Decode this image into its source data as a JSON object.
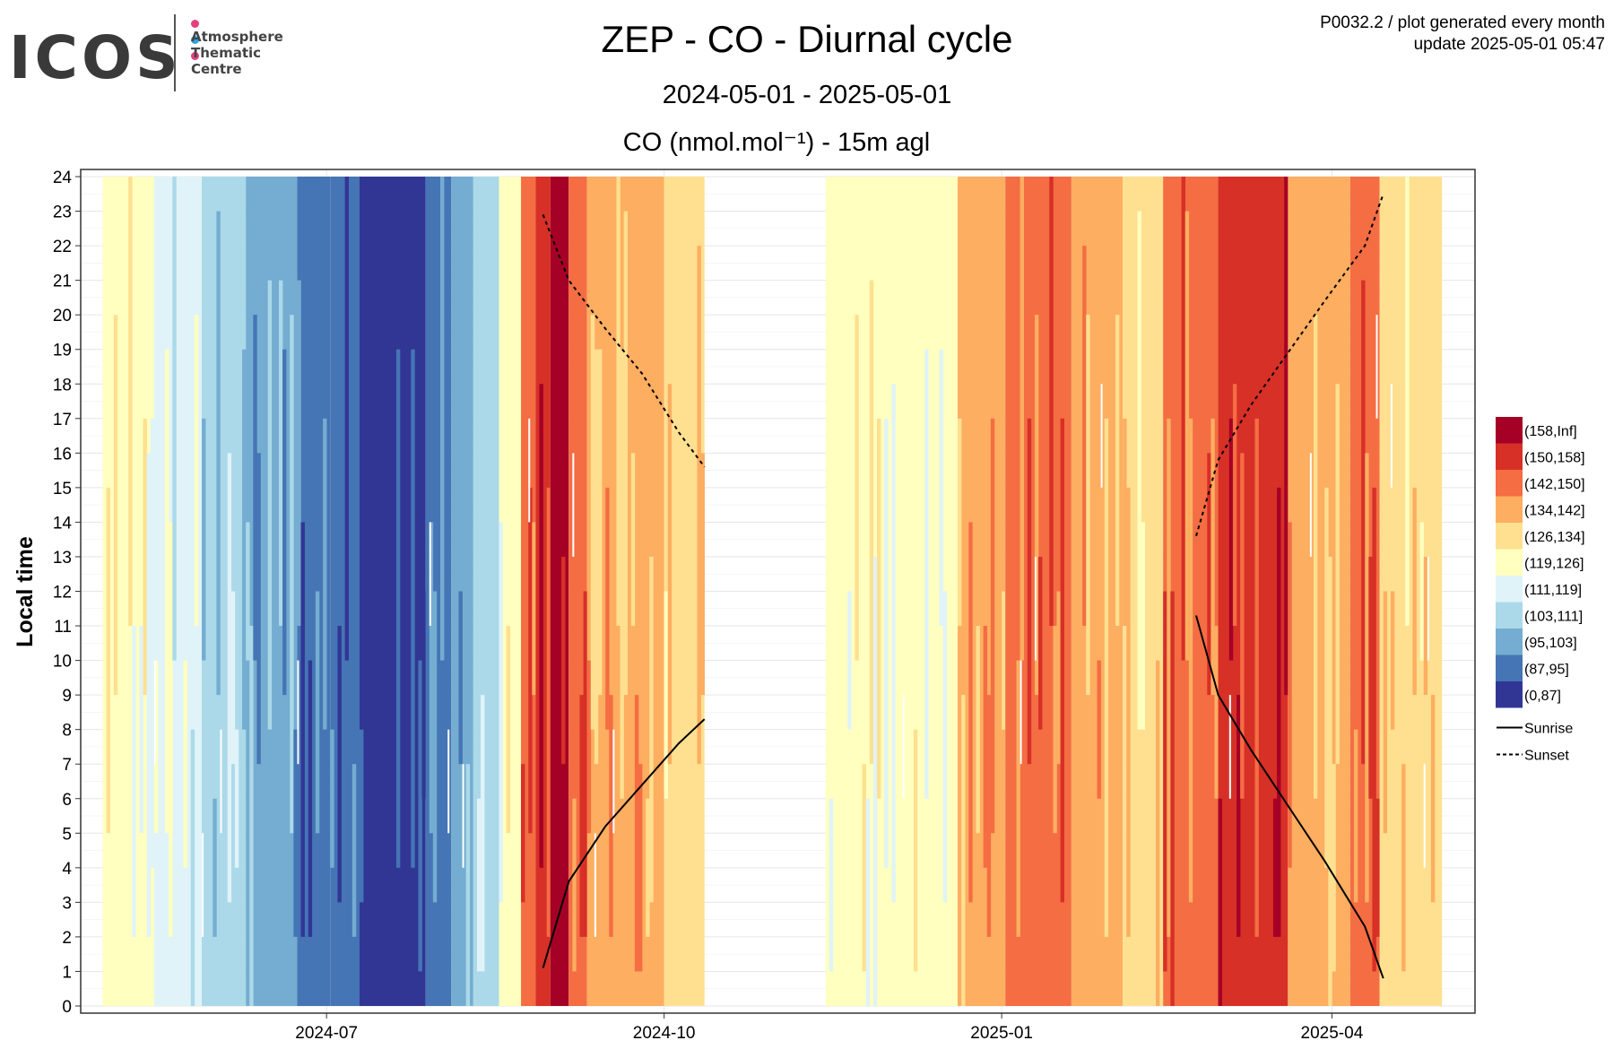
{
  "header": {
    "logo_text": "ICOS",
    "logo_sub": [
      "Atmosphere",
      "Thematic",
      "Centre"
    ],
    "logo_dot_colors": [
      "#e5407d",
      "#29a3e0",
      "#e5407d"
    ],
    "title": "ZEP - CO - Diurnal cycle",
    "subtitle": "2024-05-01 - 2025-05-01",
    "meta_line1": "P0032.2 / plot generated every month",
    "meta_line2": "update  2025-05-01 05:47"
  },
  "chart_data": {
    "type": "heatmap",
    "plot_title": "CO (nmol.mol⁻¹) - 15m agl",
    "ylabel": "Local time",
    "xlabel": "",
    "x_ticks": [
      "2024-07",
      "2024-10",
      "2025-01",
      "2025-04"
    ],
    "x_range": [
      "2024-04-25",
      "2025-05-10"
    ],
    "y_ticks": [
      0,
      1,
      2,
      3,
      4,
      5,
      6,
      7,
      8,
      9,
      10,
      11,
      12,
      13,
      14,
      15,
      16,
      17,
      18,
      19,
      20,
      21,
      22,
      23,
      24
    ],
    "ylim": [
      0,
      24
    ],
    "grid": true,
    "legend_position": "right",
    "legend": [
      {
        "label": "(158,Inf]",
        "color": "#a50026"
      },
      {
        "label": "(150,158]",
        "color": "#d73027"
      },
      {
        "label": "(142,150]",
        "color": "#f46d43"
      },
      {
        "label": "(134,142]",
        "color": "#fdae61"
      },
      {
        "label": "(126,134]",
        "color": "#fee090"
      },
      {
        "label": "(119,126]",
        "color": "#ffffbf"
      },
      {
        "label": "(111,119]",
        "color": "#e0f3f8"
      },
      {
        "label": "(103,111]",
        "color": "#abd9e9"
      },
      {
        "label": "(95,103]",
        "color": "#74add1"
      },
      {
        "label": "(87,95]",
        "color": "#4575b4"
      },
      {
        "label": "(0,87]",
        "color": "#313695"
      }
    ],
    "line_legend": [
      {
        "label": "Sunrise",
        "style": "solid"
      },
      {
        "label": "Sunset",
        "style": "dashed"
      }
    ],
    "segments": [
      {
        "start": "2024-05-01",
        "end": "2024-05-15",
        "class": "(119,126]"
      },
      {
        "start": "2024-05-15",
        "end": "2024-05-28",
        "class": "(111,119]"
      },
      {
        "start": "2024-05-28",
        "end": "2024-06-09",
        "class": "(103,111]"
      },
      {
        "start": "2024-06-09",
        "end": "2024-06-23",
        "class": "(95,103]"
      },
      {
        "start": "2024-06-23",
        "end": "2024-07-02",
        "class": "(87,95]"
      },
      {
        "start": "2024-07-02",
        "end": "2024-07-10",
        "class": "(87,95]"
      },
      {
        "start": "2024-07-10",
        "end": "2024-07-28",
        "class": "(0,87]"
      },
      {
        "start": "2024-07-28",
        "end": "2024-08-04",
        "class": "(87,95]"
      },
      {
        "start": "2024-08-04",
        "end": "2024-08-10",
        "class": "(95,103]"
      },
      {
        "start": "2024-08-10",
        "end": "2024-08-17",
        "class": "(103,111]"
      },
      {
        "start": "2024-08-17",
        "end": "2024-08-23",
        "class": "(119,126]"
      },
      {
        "start": "2024-08-23",
        "end": "2024-08-27",
        "class": "(142,150]"
      },
      {
        "start": "2024-08-27",
        "end": "2024-08-31",
        "class": "(150,158]"
      },
      {
        "start": "2024-08-31",
        "end": "2024-09-05",
        "class": "(158,Inf]"
      },
      {
        "start": "2024-09-05",
        "end": "2024-09-10",
        "class": "(142,150]"
      },
      {
        "start": "2024-09-10",
        "end": "2024-10-01",
        "class": "(134,142]"
      },
      {
        "start": "2024-10-01",
        "end": "2024-10-12",
        "class": "(126,134]"
      },
      {
        "start": "2024-11-14",
        "end": "2024-11-22",
        "class": "(119,126]"
      },
      {
        "start": "2024-11-22",
        "end": "2024-12-20",
        "class": "(119,126]"
      },
      {
        "start": "2024-12-20",
        "end": "2025-01-02",
        "class": "(134,142]"
      },
      {
        "start": "2025-01-02",
        "end": "2025-01-20",
        "class": "(142,150]"
      },
      {
        "start": "2025-01-20",
        "end": "2025-02-03",
        "class": "(134,142]"
      },
      {
        "start": "2025-02-03",
        "end": "2025-02-14",
        "class": "(126,134]"
      },
      {
        "start": "2025-02-14",
        "end": "2025-03-01",
        "class": "(142,150]"
      },
      {
        "start": "2025-03-01",
        "end": "2025-03-20",
        "class": "(150,158]"
      },
      {
        "start": "2025-03-20",
        "end": "2025-04-06",
        "class": "(134,142]"
      },
      {
        "start": "2025-04-06",
        "end": "2025-04-14",
        "class": "(142,150]"
      },
      {
        "start": "2025-04-14",
        "end": "2025-05-01",
        "class": "(126,134]"
      }
    ],
    "sunrise_1": [
      [
        "2024-08-29",
        1.1
      ],
      [
        "2024-09-05",
        3.6
      ],
      [
        "2024-09-15",
        5.2
      ],
      [
        "2024-09-25",
        6.4
      ],
      [
        "2024-10-05",
        7.6
      ],
      [
        "2024-10-12",
        8.3
      ]
    ],
    "sunset_1": [
      [
        "2024-08-29",
        22.9
      ],
      [
        "2024-09-05",
        21.0
      ],
      [
        "2024-09-15",
        19.6
      ],
      [
        "2024-09-25",
        18.3
      ],
      [
        "2024-10-05",
        16.6
      ],
      [
        "2024-10-12",
        15.6
      ]
    ],
    "sunrise_2": [
      [
        "2025-02-23",
        11.3
      ],
      [
        "2025-03-01",
        9.0
      ],
      [
        "2025-03-10",
        7.4
      ],
      [
        "2025-03-20",
        5.8
      ],
      [
        "2025-03-30",
        4.2
      ],
      [
        "2025-04-10",
        2.3
      ],
      [
        "2025-04-15",
        0.8
      ]
    ],
    "sunset_2": [
      [
        "2025-02-23",
        13.6
      ],
      [
        "2025-03-01",
        15.8
      ],
      [
        "2025-03-10",
        17.4
      ],
      [
        "2025-03-20",
        18.9
      ],
      [
        "2025-03-30",
        20.4
      ],
      [
        "2025-04-10",
        22.0
      ],
      [
        "2025-04-15",
        23.5
      ]
    ]
  }
}
